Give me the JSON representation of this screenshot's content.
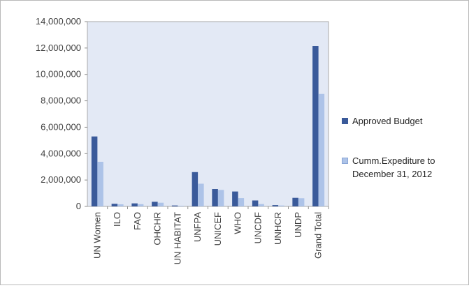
{
  "chart_data": {
    "type": "bar",
    "title": "",
    "xlabel": "",
    "ylabel": "",
    "ylim": [
      0,
      14000000
    ],
    "yticks": [
      0,
      2000000,
      4000000,
      6000000,
      8000000,
      10000000,
      12000000,
      14000000
    ],
    "ytick_labels": [
      "0",
      "2,000,000",
      "4,000,000",
      "6,000,000",
      "8,000,000",
      "10,000,000",
      "12,000,000",
      "14,000,000"
    ],
    "categories": [
      "UN Women",
      "ILO",
      "FAO",
      "OHCHR",
      "UN HABITAT",
      "UNFPA",
      "UNICEF",
      "WHO",
      "UNCDF",
      "UNHCR",
      "UNDP",
      "Grand Total"
    ],
    "series": [
      {
        "name": "Approved  Budget",
        "color": "#3a5a9a",
        "values": [
          5300000,
          200000,
          230000,
          350000,
          70000,
          2600000,
          1320000,
          1130000,
          450000,
          100000,
          650000,
          12150000
        ]
      },
      {
        "name": "Cumm.Expediture to December 31, 2012",
        "color": "#adc3e8",
        "values": [
          3380000,
          160000,
          170000,
          280000,
          50000,
          1720000,
          1250000,
          630000,
          180000,
          70000,
          620000,
          8520000
        ]
      }
    ],
    "grid": false,
    "legend_position": "right"
  }
}
